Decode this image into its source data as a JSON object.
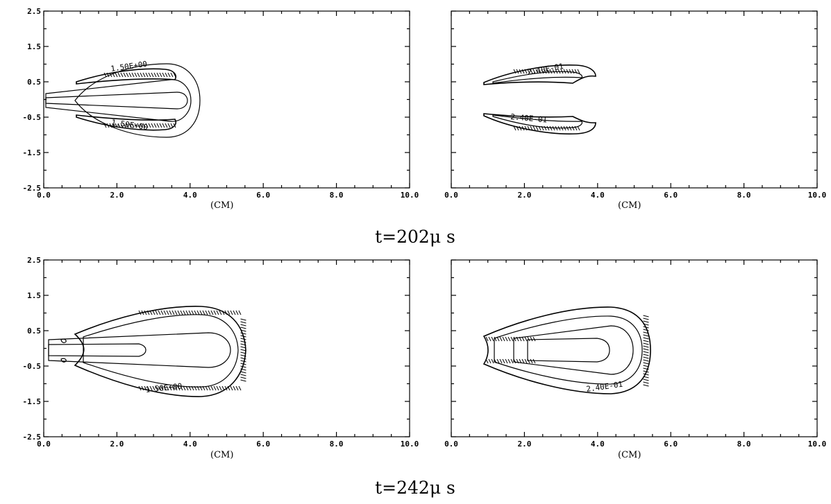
{
  "chart_data": [
    {
      "type": "contour",
      "xlim": [
        0.0,
        10.0
      ],
      "ylim": [
        -2.5,
        2.5
      ],
      "x_ticks": [
        "0.0",
        "2.0",
        "4.0",
        "6.0",
        "8.0",
        "10.0"
      ],
      "y_ticks": [
        "2.5",
        "1.5",
        "0.5",
        "-0.5",
        "-1.5",
        "-2.5"
      ],
      "xlabel": "(CM)",
      "contour_labels": [
        "1.50E+00",
        "1.50E+00"
      ]
    },
    {
      "type": "contour",
      "xlim": [
        0.0,
        10.0
      ],
      "ylim": [
        -2.5,
        2.5
      ],
      "x_ticks": [
        "0.0",
        "2.0",
        "4.0",
        "6.0",
        "8.0",
        "10.0"
      ],
      "xlabel": "(CM)",
      "contour_labels": [
        "2.40E-01",
        "2.40E-01"
      ]
    },
    {
      "type": "contour",
      "xlim": [
        0.0,
        10.0
      ],
      "ylim": [
        -2.5,
        2.5
      ],
      "x_ticks": [
        "0.0",
        "2.0",
        "4.0",
        "6.0",
        "8.0",
        "10.0"
      ],
      "y_ticks": [
        "2.5",
        "1.5",
        "0.5",
        "-0.5",
        "-1.5",
        "-2.5"
      ],
      "xlabel": "(CM)",
      "contour_labels": [
        "1.50E+00"
      ]
    },
    {
      "type": "contour",
      "xlim": [
        0.0,
        10.0
      ],
      "ylim": [
        -2.5,
        2.5
      ],
      "x_ticks": [
        "0.0",
        "2.0",
        "4.0",
        "6.0",
        "8.0",
        "10.0"
      ],
      "xlabel": "(CM)",
      "contour_labels": [
        "2.40E-01"
      ]
    }
  ],
  "captions": {
    "top": "t=202μ s",
    "bottom": "t=242μ s"
  }
}
